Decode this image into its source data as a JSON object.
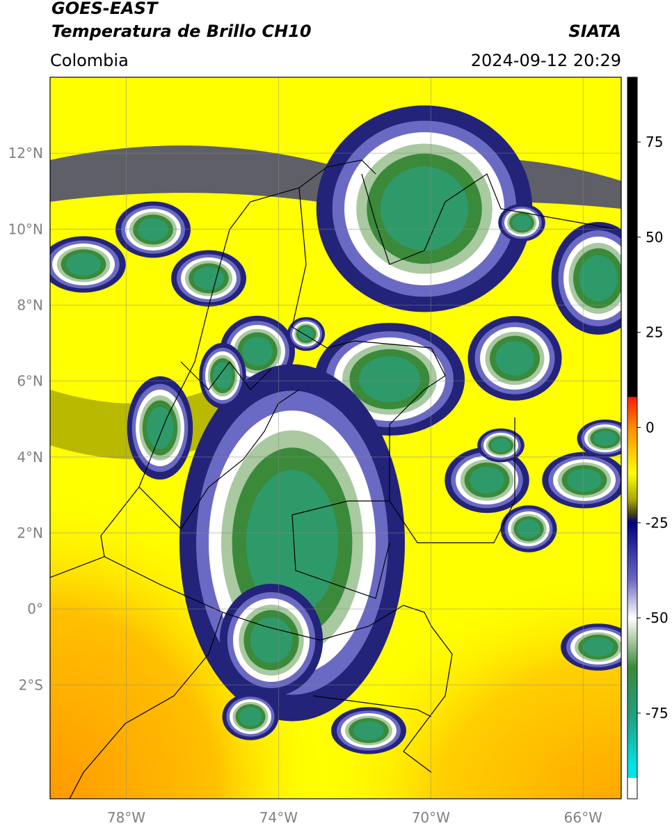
{
  "chart_data": {
    "type": "map",
    "title": "GOES-EAST",
    "subtitle": "Temperatura de Brillo CH10",
    "source": "SIATA",
    "region": "Colombia",
    "datetime": "2024-09-12 20:29",
    "xlim": [
      -80,
      -65
    ],
    "ylim": [
      -5,
      14
    ],
    "xticks": [
      {
        "value": -78,
        "label": "78°W"
      },
      {
        "value": -74,
        "label": "74°W"
      },
      {
        "value": -70,
        "label": "70°W"
      },
      {
        "value": -66,
        "label": "66°W"
      }
    ],
    "yticks": [
      {
        "value": 12,
        "label": "12°N"
      },
      {
        "value": 10,
        "label": "10°N"
      },
      {
        "value": 8,
        "label": "8°N"
      },
      {
        "value": 6,
        "label": "6°N"
      },
      {
        "value": 4,
        "label": "4°N"
      },
      {
        "value": 2,
        "label": "2°N"
      },
      {
        "value": 0,
        "label": "0°"
      },
      {
        "value": -2,
        "label": "2°S"
      }
    ],
    "grid": true,
    "colorbar": {
      "lim": [
        -97.5,
        92
      ],
      "ticks": [
        75,
        50,
        25,
        0,
        -25,
        -50,
        -75
      ],
      "colormap": [
        {
          "value": 92,
          "color": "#000000"
        },
        {
          "value": 8,
          "color": "#000000"
        },
        {
          "value": 8,
          "color": "#ff1a00"
        },
        {
          "value": 0,
          "color": "#ff8c00"
        },
        {
          "value": -12,
          "color": "#ffff00"
        },
        {
          "value": -19,
          "color": "#a8a800"
        },
        {
          "value": -23,
          "color": "#3a3a20"
        },
        {
          "value": -25,
          "color": "#000080"
        },
        {
          "value": -40,
          "color": "#6a6ac4"
        },
        {
          "value": -50,
          "color": "#ffffff"
        },
        {
          "value": -56,
          "color": "#a9c9a0"
        },
        {
          "value": -63,
          "color": "#3a8a3a"
        },
        {
          "value": -76,
          "color": "#20a080"
        },
        {
          "value": -89,
          "color": "#00e5e5"
        },
        {
          "value": -92,
          "color": "#00e5e5"
        },
        {
          "value": -92,
          "color": "#ffffff"
        },
        {
          "value": -97.5,
          "color": "#ffffff"
        }
      ]
    }
  }
}
